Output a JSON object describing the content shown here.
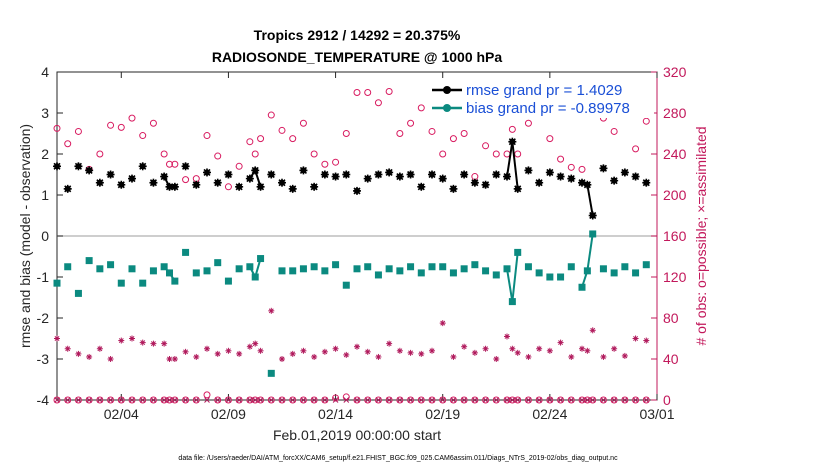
{
  "chart_data": {
    "type": "line",
    "title": "Tropics 2912 / 14292 = 20.375%",
    "subtitle": "RADIOSONDE_TEMPERATURE @ 1000 hPa",
    "xlabel": "Feb.01,2019 00:00:00 start",
    "ylabel": "rmse and bias (model - observation)",
    "y2label": "# of obs: o=possible; ×=assimilated",
    "footnote": "data file: /Users/raeder/DAI/ATM_forcXX/CAM6_setup/f.e21.FHIST_BGC.f09_025.CAM6assim.011/Diags_NTrS_2019-02/obs_diag_output.nc",
    "xlim": [
      1,
      29
    ],
    "ylim": [
      -4,
      4
    ],
    "y2lim": [
      0,
      320
    ],
    "x_ticks": [
      {
        "value": 4,
        "label": "02/04"
      },
      {
        "value": 9,
        "label": "02/09"
      },
      {
        "value": 14,
        "label": "02/14"
      },
      {
        "value": 19,
        "label": "02/19"
      },
      {
        "value": 24,
        "label": "02/24"
      },
      {
        "value": 29,
        "label": "03/01"
      }
    ],
    "y_ticks": [
      "4",
      "3",
      "2",
      "1",
      "0",
      "-1",
      "-2",
      "-3",
      "-4"
    ],
    "y_tick_values": [
      4,
      3,
      2,
      1,
      0,
      -1,
      -2,
      -3,
      -4
    ],
    "y2_ticks": [
      "320",
      "280",
      "240",
      "200",
      "160",
      "120",
      "80",
      "40",
      "0"
    ],
    "y2_tick_values": [
      320,
      280,
      240,
      200,
      160,
      120,
      80,
      40,
      0
    ],
    "x": [
      1.0,
      1.5,
      2.0,
      2.5,
      3.0,
      3.5,
      4.0,
      4.5,
      5.0,
      5.5,
      6.0,
      6.25,
      6.5,
      7.0,
      7.5,
      8.0,
      8.5,
      9.0,
      9.5,
      10.0,
      10.25,
      10.5,
      11.0,
      11.5,
      12.0,
      12.5,
      13.0,
      13.5,
      14.0,
      14.5,
      15.0,
      15.5,
      16.0,
      16.5,
      17.0,
      17.5,
      18.0,
      18.5,
      19.0,
      19.5,
      20.0,
      20.5,
      21.0,
      21.5,
      22.0,
      22.25,
      22.5,
      23.0,
      23.5,
      24.0,
      24.5,
      25.0,
      25.5,
      25.75,
      26.0,
      26.5,
      27.0,
      27.5,
      28.0,
      28.5
    ],
    "series": [
      {
        "name": "rmse grand pr = 1.4029",
        "color": "#000000",
        "values": [
          1.7,
          1.15,
          1.7,
          1.6,
          1.3,
          1.5,
          1.25,
          1.4,
          1.7,
          1.3,
          1.45,
          1.2,
          1.2,
          1.7,
          1.25,
          1.55,
          1.3,
          1.5,
          1.2,
          1.4,
          1.6,
          1.2,
          1.5,
          1.3,
          1.15,
          1.6,
          1.2,
          1.5,
          1.45,
          1.5,
          1.1,
          1.4,
          1.5,
          1.55,
          1.45,
          1.5,
          1.2,
          1.5,
          1.4,
          1.15,
          1.5,
          1.3,
          1.25,
          1.5,
          1.45,
          2.3,
          1.15,
          1.6,
          1.3,
          1.55,
          1.45,
          1.4,
          1.3,
          1.25,
          0.5,
          1.65,
          1.35,
          1.55,
          1.45,
          1.3
        ]
      },
      {
        "name": "bias grand pr = -0.89978",
        "color": "#0b8a80",
        "values": [
          -1.15,
          -0.75,
          -1.4,
          -0.6,
          -0.8,
          -0.7,
          -1.15,
          -0.8,
          -1.15,
          -0.85,
          -0.75,
          -0.9,
          -1.1,
          -0.4,
          -0.9,
          -0.85,
          -0.65,
          -1.1,
          -0.8,
          -0.75,
          -1.0,
          -0.55,
          -3.35,
          -0.85,
          -0.85,
          -0.8,
          -0.75,
          -0.85,
          -0.7,
          -1.2,
          -0.8,
          -0.75,
          -0.95,
          -0.8,
          -0.85,
          -0.75,
          -0.9,
          -0.75,
          -0.75,
          -0.9,
          -0.8,
          -0.7,
          -0.85,
          -0.95,
          -0.8,
          -1.6,
          -0.4,
          -0.75,
          -0.9,
          -1.0,
          -1.0,
          -0.75,
          -1.25,
          -0.85,
          0.05,
          -0.8,
          -0.9,
          -0.75,
          -0.9,
          -0.7
        ]
      }
    ],
    "possible_obs": {
      "marker": "o",
      "color": "#d81b60",
      "values": [
        265,
        250,
        262,
        225,
        240,
        268,
        266,
        275,
        258,
        270,
        240,
        230,
        230,
        215,
        216,
        258,
        238,
        208,
        228,
        252,
        240,
        255,
        278,
        263,
        255,
        270,
        240,
        230,
        232,
        260,
        300,
        300,
        290,
        301,
        260,
        270,
        285,
        262,
        240,
        255,
        260,
        218,
        248,
        240,
        240,
        264,
        240,
        270,
        290,
        255,
        235,
        227,
        225,
        292,
        297,
        275,
        262,
        280,
        245,
        272
      ],
      "values_at_bottom": [
        0,
        0,
        0,
        0,
        0,
        0,
        0,
        0,
        0,
        0,
        0,
        0,
        0,
        0,
        0,
        5,
        0,
        0,
        0,
        0,
        0,
        0,
        0,
        0,
        0,
        0,
        0,
        0,
        2,
        3,
        0,
        0,
        0,
        0,
        0,
        0,
        0,
        0,
        0,
        0,
        0,
        0,
        0,
        0,
        0,
        0,
        0,
        0,
        0,
        0,
        0,
        0,
        0,
        0,
        0,
        0,
        0,
        0,
        0,
        0
      ]
    },
    "assimilated_obs": {
      "marker": "x",
      "color": "#b0185b",
      "values": [
        60,
        50,
        45,
        42,
        50,
        40,
        58,
        60,
        56,
        55,
        55,
        40,
        40,
        47,
        42,
        50,
        45,
        48,
        45,
        52,
        55,
        48,
        87,
        40,
        45,
        48,
        42,
        47,
        50,
        44,
        52,
        47,
        42,
        55,
        48,
        46,
        45,
        48,
        75,
        42,
        52,
        46,
        50,
        40,
        62,
        50,
        46,
        42,
        50,
        48,
        56,
        42,
        50,
        48,
        68,
        42,
        50,
        43,
        60,
        58
      ]
    },
    "legend_position": "top-right",
    "grid": false
  }
}
